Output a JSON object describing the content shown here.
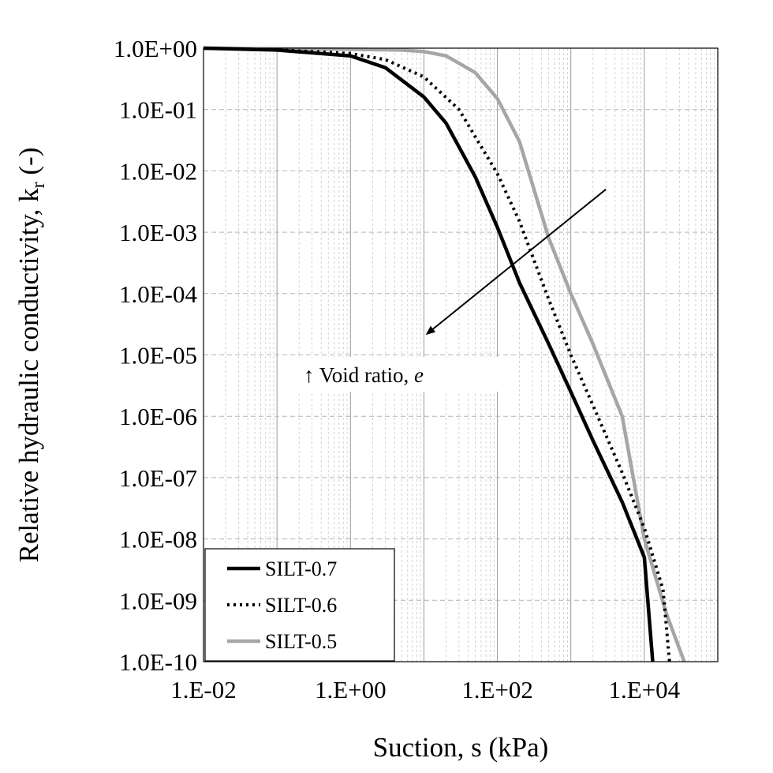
{
  "chart_data": {
    "type": "line",
    "xlabel": "Suction, s (kPa)",
    "ylabel_main": "Relative hydraulic conductivity, k",
    "ylabel_sub": "r",
    "ylabel_suffix": " (-)",
    "x_scale": "log",
    "y_scale": "log",
    "xlim": [
      0.01,
      100000
    ],
    "ylim": [
      1e-10,
      1
    ],
    "x_ticks": [
      {
        "value": 0.01,
        "label": "1.E-02"
      },
      {
        "value": 1,
        "label": "1.E+00"
      },
      {
        "value": 100,
        "label": "1.E+02"
      },
      {
        "value": 10000,
        "label": "1.E+04"
      }
    ],
    "y_ticks": [
      {
        "value": 1,
        "label": "1.0E+00"
      },
      {
        "value": 0.1,
        "label": "1.0E-01"
      },
      {
        "value": 0.01,
        "label": "1.0E-02"
      },
      {
        "value": 0.001,
        "label": "1.0E-03"
      },
      {
        "value": 0.0001,
        "label": "1.0E-04"
      },
      {
        "value": 1e-05,
        "label": "1.0E-05"
      },
      {
        "value": 1e-06,
        "label": "1.0E-06"
      },
      {
        "value": 1e-07,
        "label": "1.0E-07"
      },
      {
        "value": 1e-08,
        "label": "1.0E-08"
      },
      {
        "value": 1e-09,
        "label": "1.0E-09"
      },
      {
        "value": 1e-10,
        "label": "1.0E-10"
      }
    ],
    "grid": true,
    "legend_position": "bottom-left",
    "series": [
      {
        "name": "SILT-0.7",
        "color": "#000000",
        "dash": "solid",
        "points": [
          [
            0.01,
            1.0
          ],
          [
            0.1,
            0.93
          ],
          [
            1,
            0.75
          ],
          [
            3,
            0.48
          ],
          [
            10,
            0.16
          ],
          [
            20,
            0.06
          ],
          [
            50,
            0.008
          ],
          [
            100,
            0.0012
          ],
          [
            200,
            0.00015
          ],
          [
            500,
            1.5e-05
          ],
          [
            1000,
            2.5e-06
          ],
          [
            2000,
            4e-07
          ],
          [
            5000,
            4e-08
          ],
          [
            10000,
            5e-09
          ],
          [
            13000,
            1e-10
          ]
        ]
      },
      {
        "name": "SILT-0.6",
        "color": "#000000",
        "dash": "dotted",
        "points": [
          [
            0.01,
            1.0
          ],
          [
            0.1,
            0.94
          ],
          [
            1,
            0.82
          ],
          [
            3,
            0.65
          ],
          [
            10,
            0.34
          ],
          [
            30,
            0.1
          ],
          [
            100,
            0.009
          ],
          [
            200,
            0.0015
          ],
          [
            500,
            8e-05
          ],
          [
            1000,
            1e-05
          ],
          [
            2000,
            1.5e-06
          ],
          [
            5000,
            1.2e-07
          ],
          [
            10000,
            1.5e-08
          ],
          [
            18000,
            1.5e-09
          ],
          [
            22000,
            1e-10
          ]
        ]
      },
      {
        "name": "SILT-0.5",
        "color": "#A6A6A6",
        "dash": "solid",
        "points": [
          [
            0.01,
            1.0
          ],
          [
            0.1,
            0.98
          ],
          [
            1,
            0.96
          ],
          [
            5,
            0.93
          ],
          [
            10,
            0.88
          ],
          [
            20,
            0.75
          ],
          [
            50,
            0.4
          ],
          [
            100,
            0.15
          ],
          [
            200,
            0.03
          ],
          [
            500,
            0.0008
          ],
          [
            1000,
            0.0001
          ],
          [
            2000,
            1.5e-05
          ],
          [
            5000,
            1e-06
          ],
          [
            10000,
            1e-08
          ],
          [
            20000,
            6e-10
          ],
          [
            35000,
            1e-10
          ]
        ]
      }
    ],
    "annotation": {
      "text_prefix": "↑ Void ratio, ",
      "text_italic": "e",
      "arrow_from": {
        "x": 3000,
        "y": 0.005
      },
      "arrow_to": {
        "x": 11,
        "y": 2.2e-05
      }
    }
  }
}
